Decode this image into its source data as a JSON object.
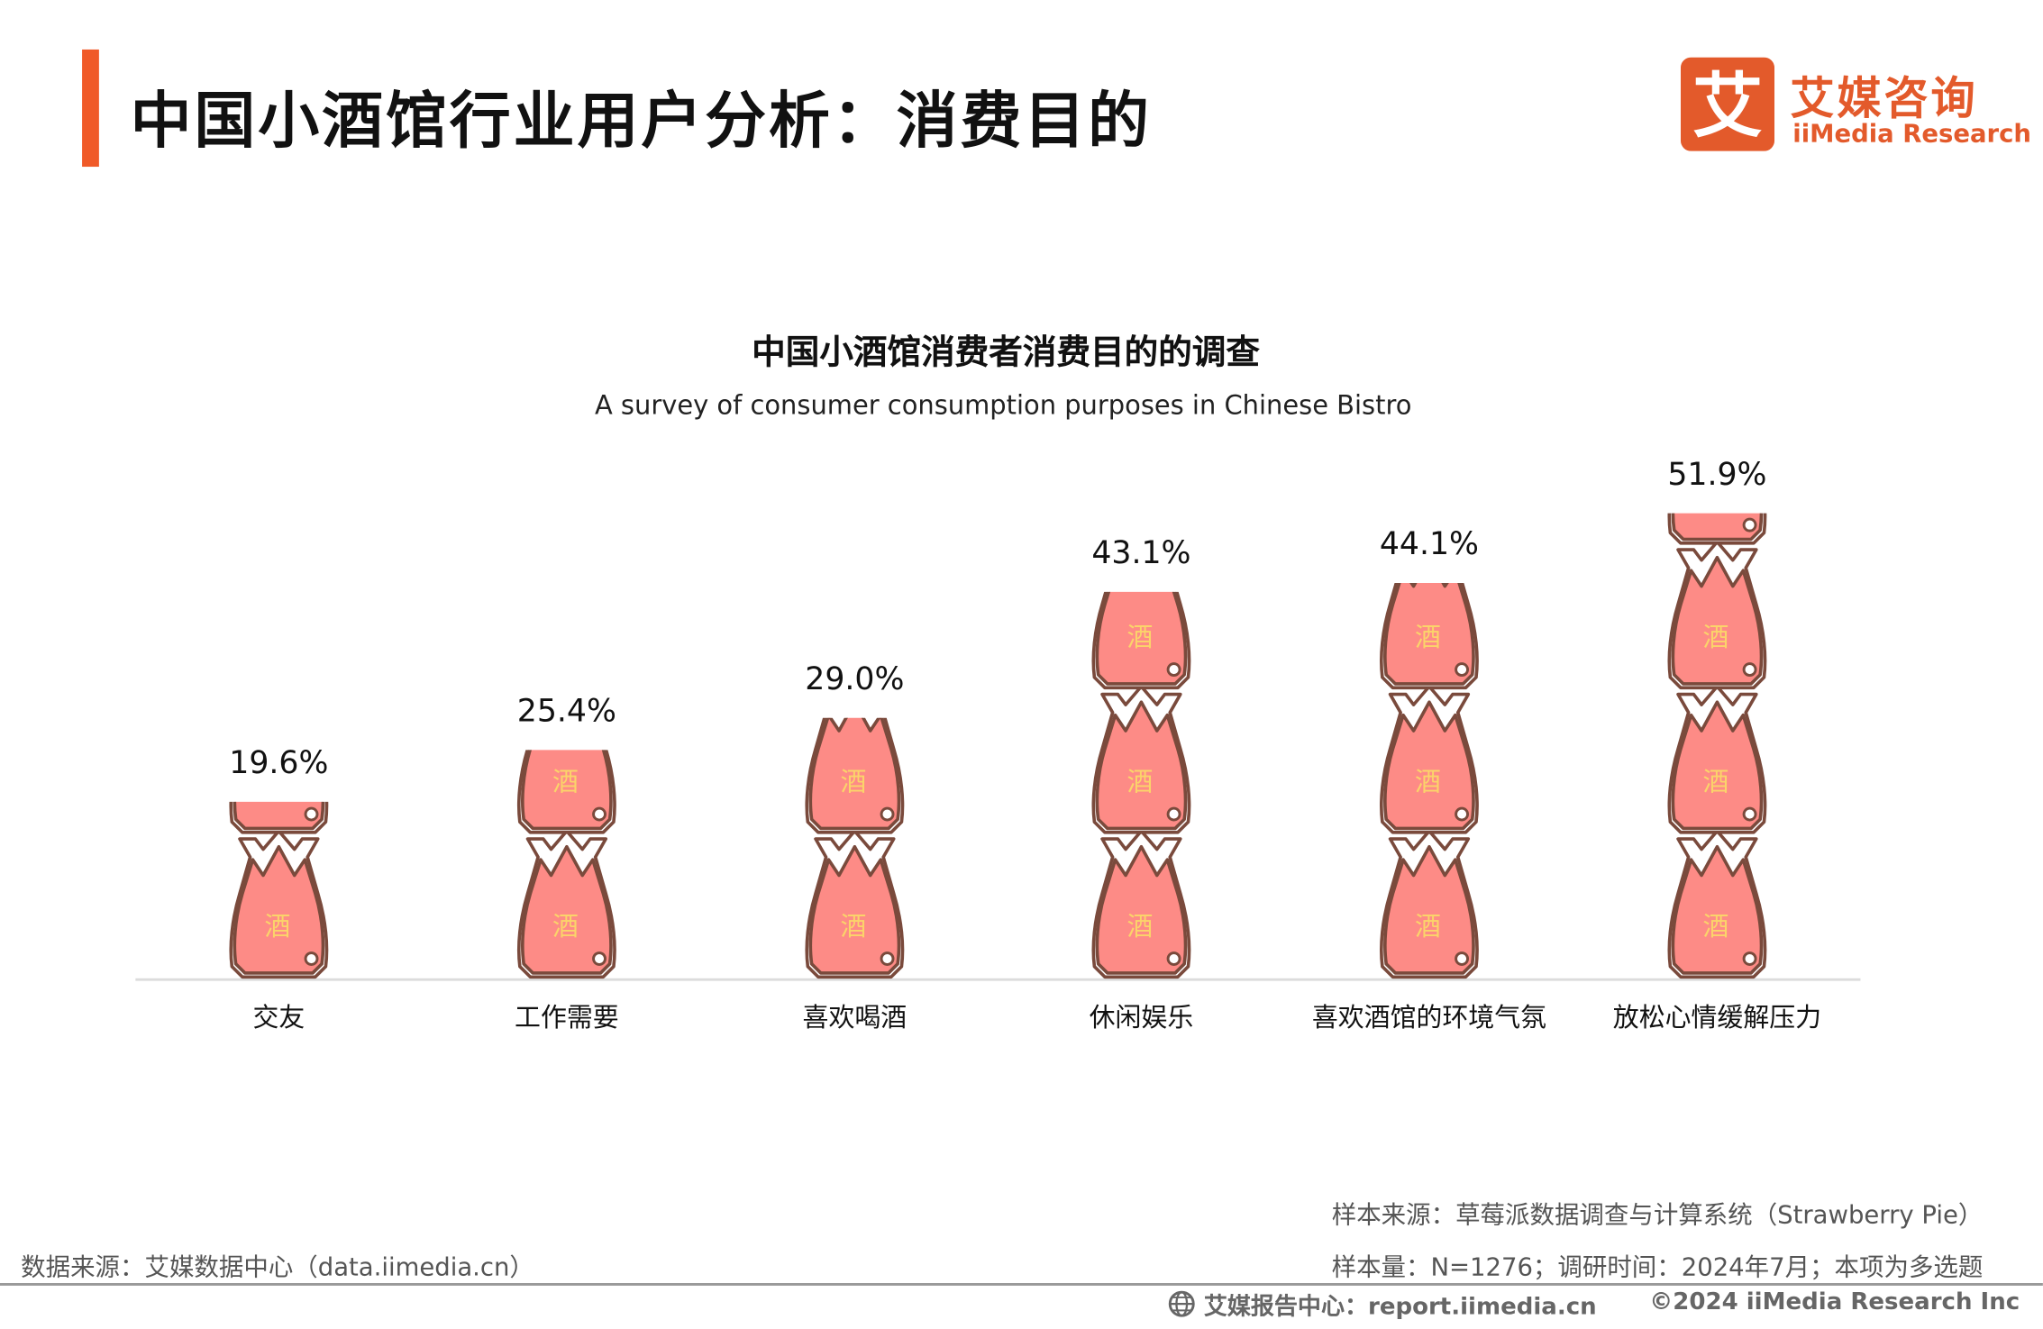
{
  "header": {
    "title": "中国小酒馆行业用户分析：消费目的"
  },
  "logo": {
    "mark": "艾",
    "cn": "艾媒咨询",
    "en": "iiMedia Research"
  },
  "colors": {
    "accent": "#f05a28",
    "jar_fill": "#fd8b86",
    "jar_outline": "#7a4a3c",
    "jar_label": "#fbd46a",
    "logo": "#e35a2b"
  },
  "chart_data": {
    "type": "bar",
    "title": "中国小酒馆消费者消费目的的调查",
    "subtitle": "A survey of consumer consumption purposes in Chinese Bistro",
    "categories": [
      "交友",
      "工作需要",
      "喜欢喝酒",
      "休闲娱乐",
      "喜欢酒馆的环境气氛",
      "放松心情缓解压力"
    ],
    "values": [
      19.6,
      25.4,
      29.0,
      43.1,
      44.1,
      51.9
    ],
    "value_labels": [
      "19.6%",
      "25.4%",
      "29.0%",
      "43.1%",
      "44.1%",
      "51.9%"
    ],
    "unit": "%",
    "jar_glyph": "酒",
    "xlabel": "",
    "ylabel": "",
    "ylim": [
      0,
      52
    ],
    "grid": false
  },
  "footer": {
    "source": "数据来源：艾媒数据中心（data.iimedia.cn）",
    "sample_source": "样本来源：草莓派数据调查与计算系统（Strawberry Pie）",
    "sample_size": "样本量：N=1276；调研时间：2024年7月；本项为多选题",
    "report_center": "艾媒报告中心：report.iimedia.cn",
    "copyright": "©2024  iiMedia Research  Inc"
  }
}
